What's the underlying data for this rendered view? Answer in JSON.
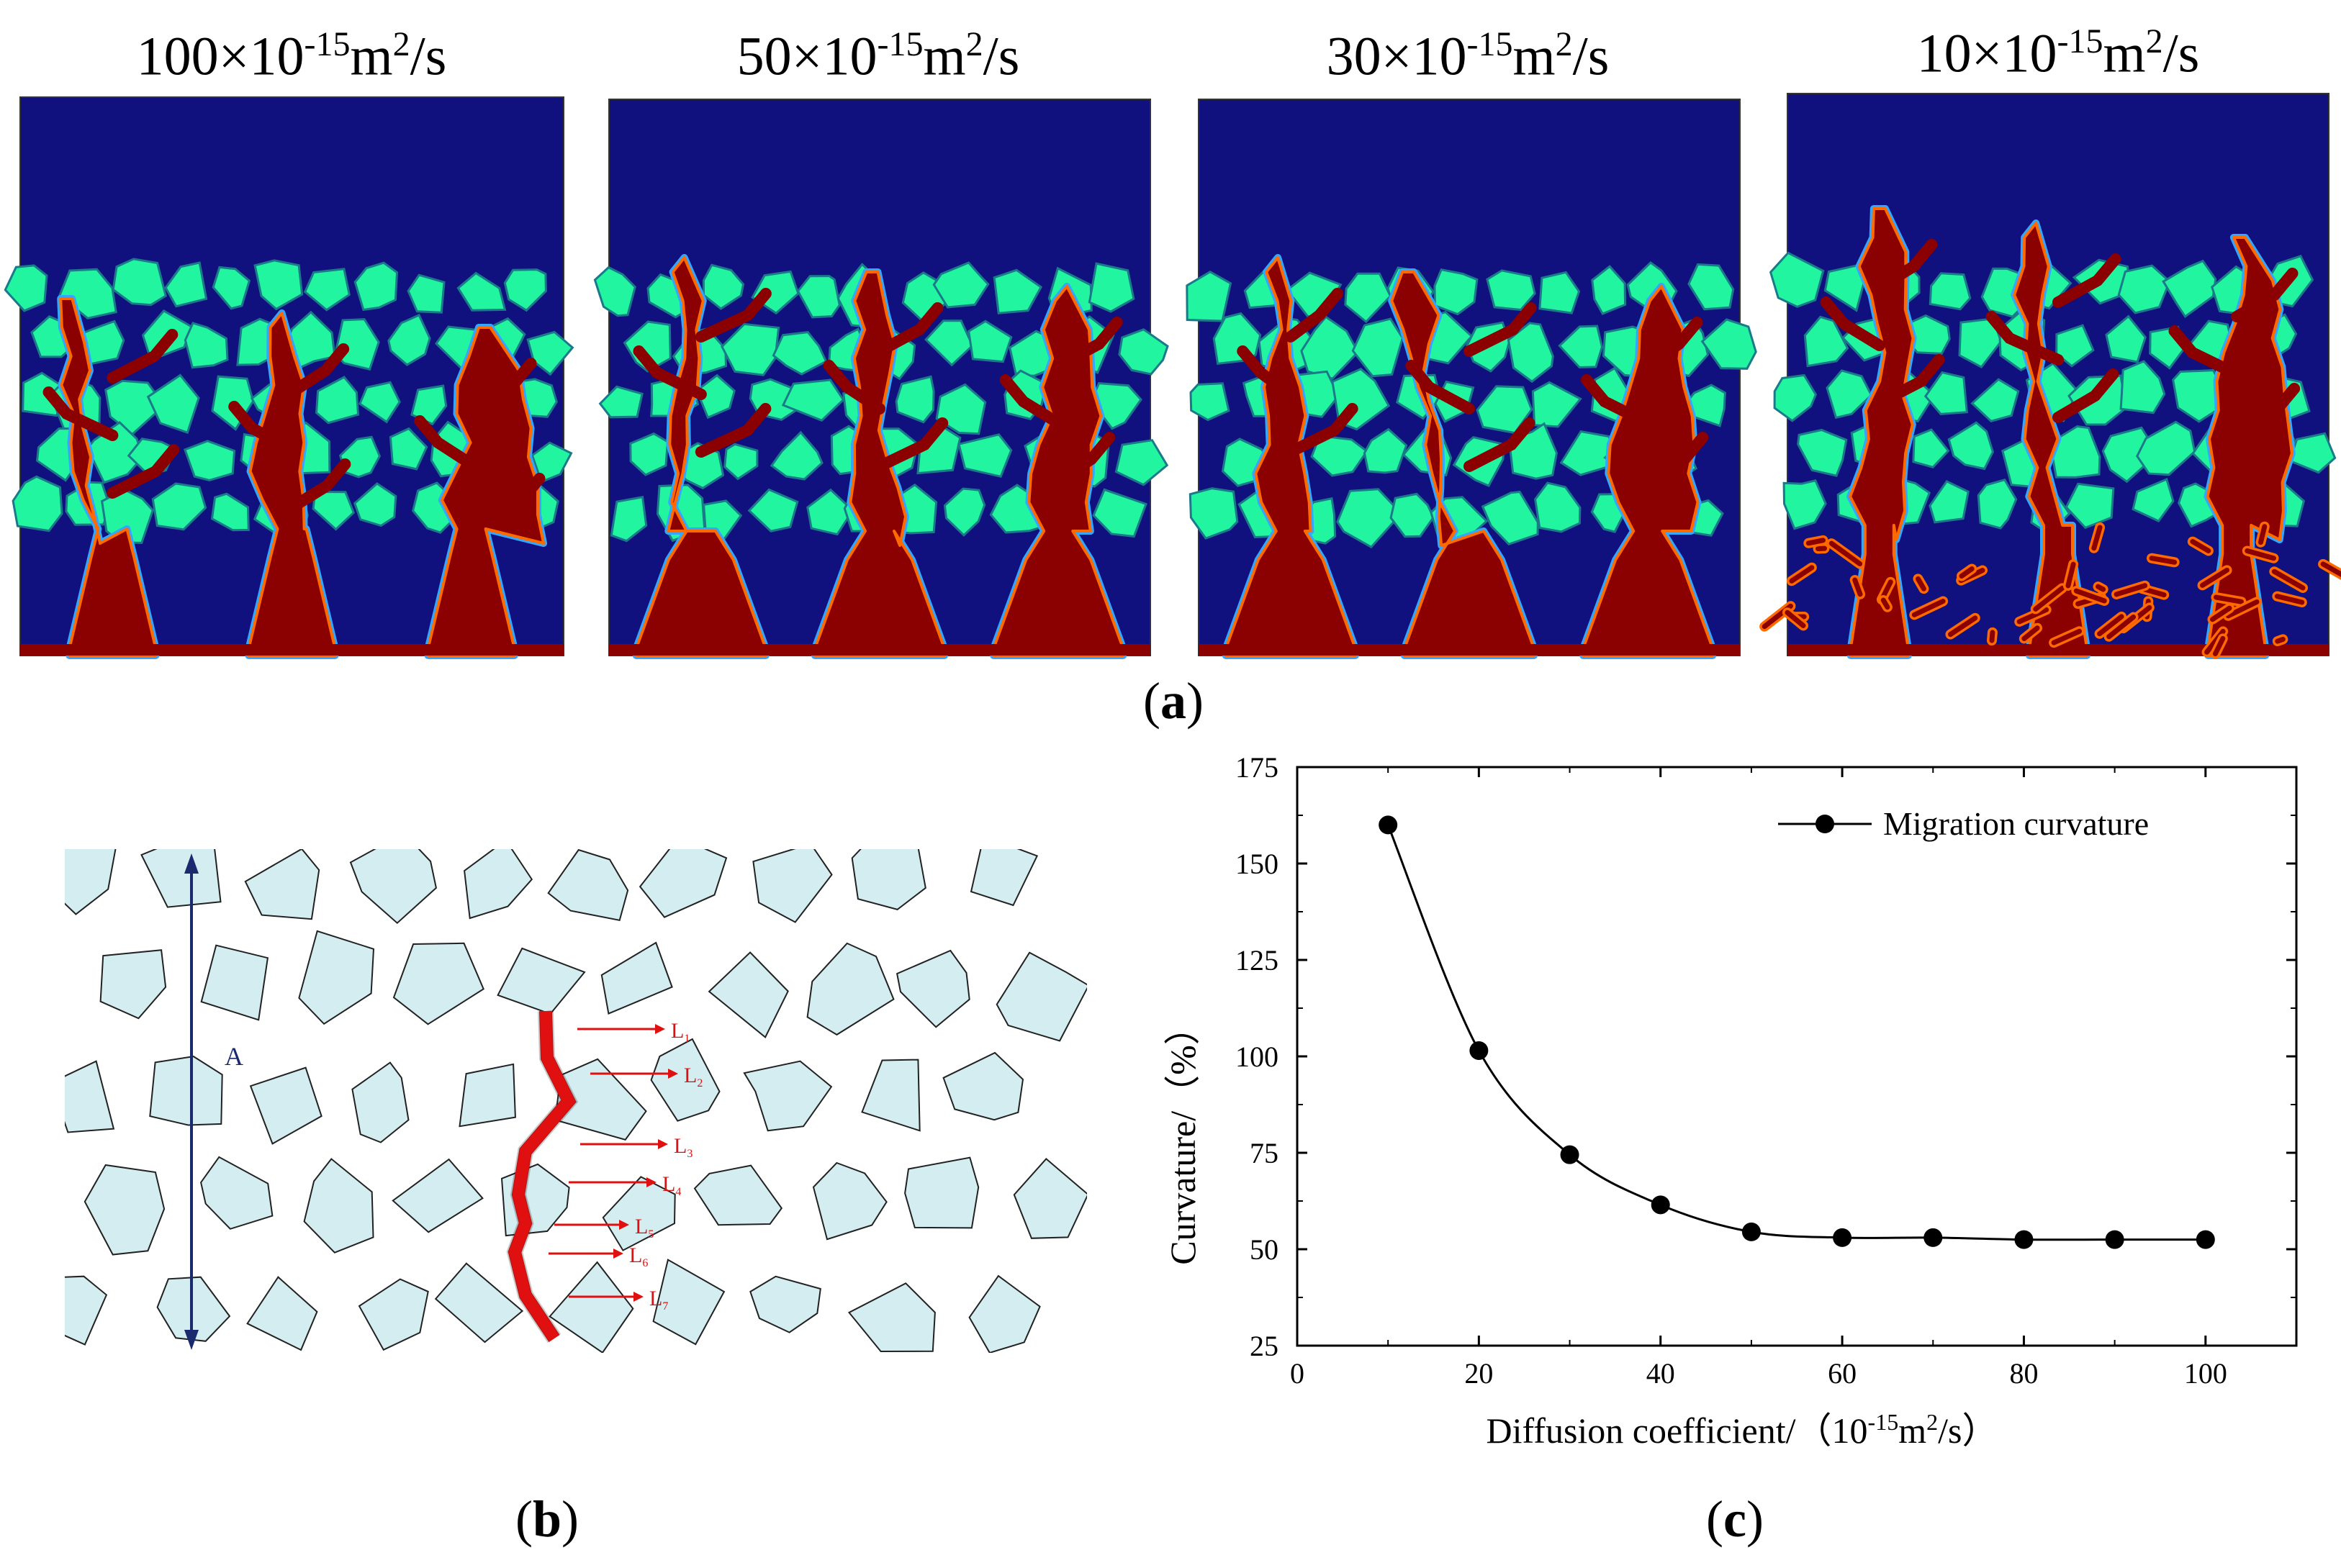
{
  "panel_a": {
    "label_open": "(",
    "label_letter": "a",
    "label_close": ")",
    "titles": [
      {
        "coef": "100×10",
        "exp1": "-15",
        "unit": "m",
        "exp2": "2",
        "tail": "/s"
      },
      {
        "coef": "50×10",
        "exp1": "-15",
        "unit": "m",
        "exp2": "2",
        "tail": "/s"
      },
      {
        "coef": "30×10",
        "exp1": "-15",
        "unit": "m",
        "exp2": "2",
        "tail": "/s"
      },
      {
        "coef": "10×10",
        "exp1": "-15",
        "unit": "m",
        "exp2": "2",
        "tail": "/s"
      }
    ]
  },
  "panel_b": {
    "label_open": "(",
    "label_letter": "b",
    "label_close": ")",
    "arrow_label": "A",
    "paths": [
      "L",
      "L",
      "L",
      "L",
      "L",
      "L",
      "L"
    ],
    "path_subs": [
      "1",
      "2",
      "3",
      "4",
      "5",
      "6",
      "7"
    ]
  },
  "panel_c": {
    "label_open": "(",
    "label_letter": "c",
    "label_close": ")"
  },
  "colors": {
    "background_fluid": "#10107e",
    "aggregate": "#22f5a0",
    "crack": "#8b0000",
    "crack_edge": "#ff6a00",
    "sketch_fill": "#d4edf1",
    "sketch_red": "#e01010",
    "sketch_arrow": "#1a2a6e"
  },
  "chart_data": {
    "type": "line",
    "title": "",
    "xlabel": "Diffusion coefficient/（10",
    "xlabel_exp1": "-15",
    "xlabel_unit": "m",
    "xlabel_exp2": "2",
    "xlabel_tail": "/s）",
    "ylabel": "Curvature/（%）",
    "xlim": [
      0,
      110
    ],
    "ylim": [
      25,
      175
    ],
    "xticks": [
      0,
      20,
      40,
      60,
      80,
      100
    ],
    "yticks": [
      25,
      50,
      75,
      100,
      125,
      150,
      175
    ],
    "legend_position": "top-right",
    "series": [
      {
        "name": "Migration curvature",
        "x": [
          10,
          20,
          30,
          40,
          50,
          60,
          70,
          80,
          90,
          100
        ],
        "y": [
          160,
          101.5,
          74.5,
          61.5,
          54.5,
          53,
          53,
          52.5,
          52.5,
          52.5
        ]
      }
    ]
  }
}
